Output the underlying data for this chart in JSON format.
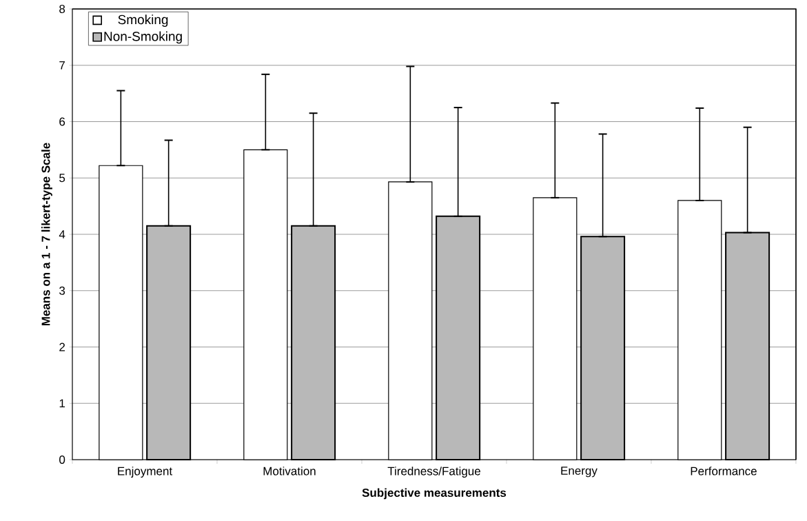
{
  "chart_data": {
    "type": "bar",
    "xlabel": "Subjective measurements",
    "ylabel": "Means on a 1 - 7 likert-type Scale",
    "categories": [
      "Enjoyment",
      "Motivation",
      "Tiredness/Fatigue",
      "Energy",
      "Performance"
    ],
    "series": [
      {
        "name": "Smoking",
        "color": "#ffffff",
        "values": [
          5.22,
          5.5,
          4.93,
          4.65,
          4.6
        ],
        "errors": [
          [
            5.22,
            6.55
          ],
          [
            5.5,
            6.84
          ],
          [
            4.93,
            6.98
          ],
          [
            4.65,
            6.33
          ],
          [
            4.6,
            6.24
          ]
        ]
      },
      {
        "name": "Non-Smoking",
        "color": "#b8b8b8",
        "values": [
          4.15,
          4.15,
          4.32,
          3.96,
          4.03
        ],
        "errors": [
          [
            4.15,
            5.67
          ],
          [
            4.15,
            6.15
          ],
          [
            4.32,
            6.25
          ],
          [
            3.96,
            5.78
          ],
          [
            4.03,
            5.9
          ]
        ]
      }
    ],
    "ylim": [
      0,
      8
    ],
    "yticks": [
      0,
      1,
      2,
      3,
      4,
      5,
      6,
      7,
      8
    ],
    "grid": "y",
    "legend": "top left"
  }
}
